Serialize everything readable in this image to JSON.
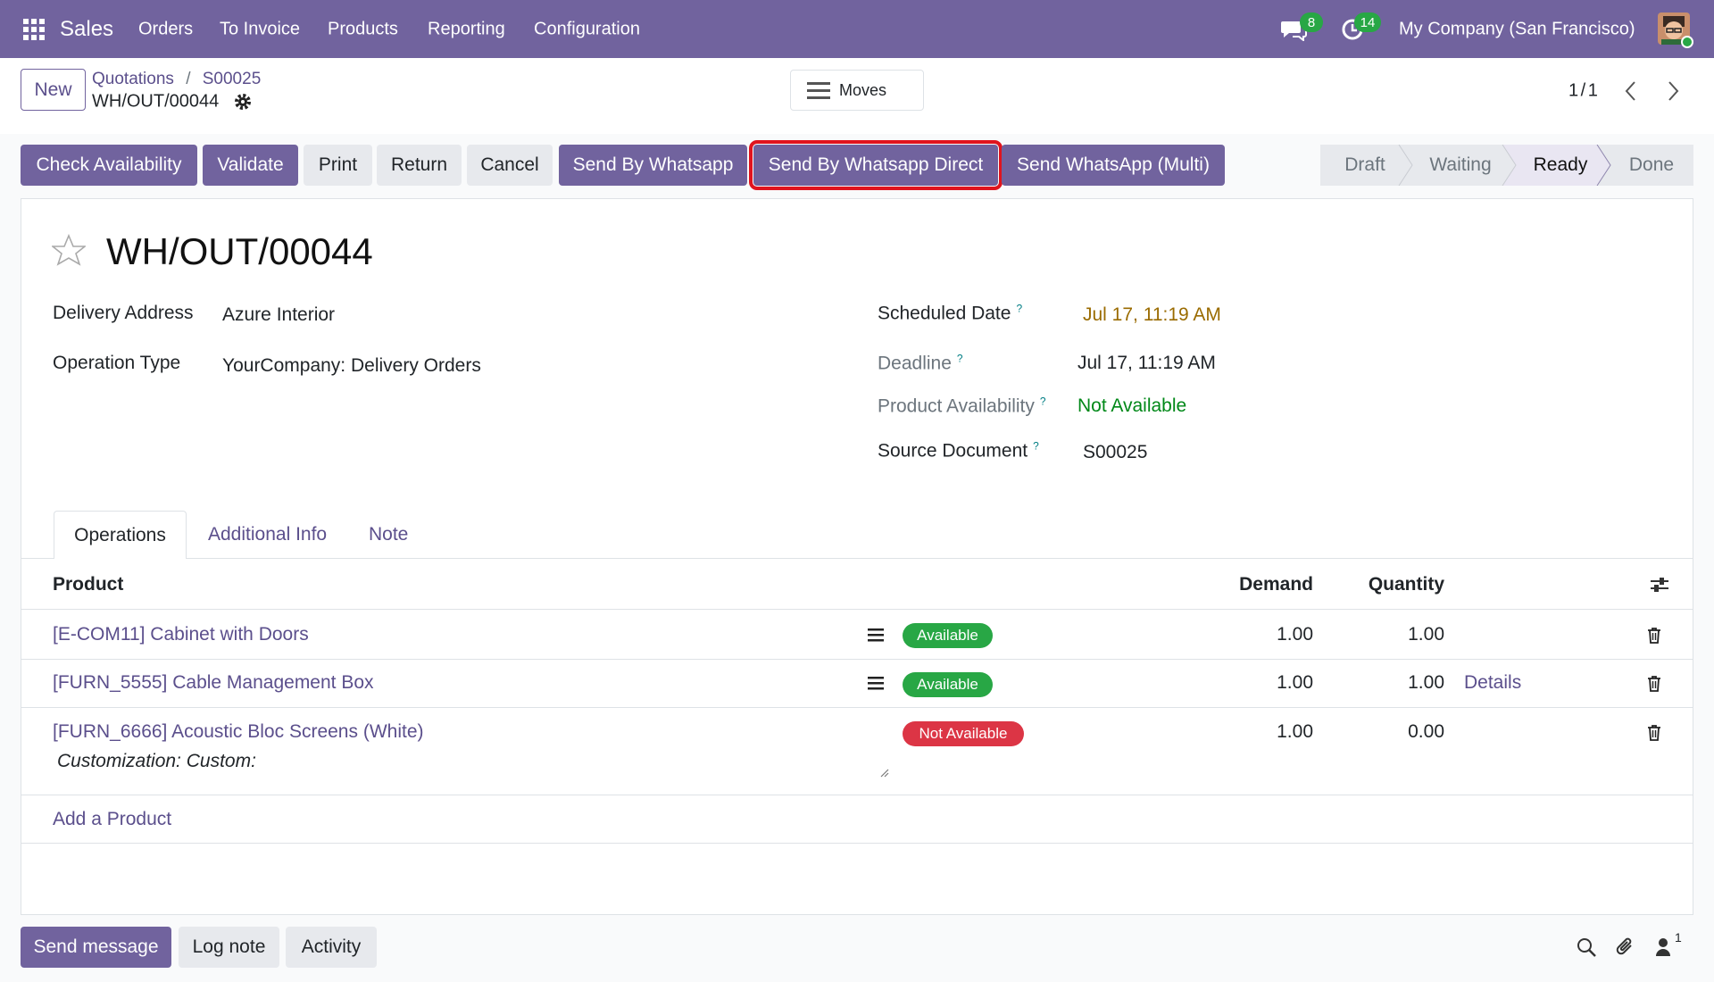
{
  "navbar": {
    "app": "Sales",
    "menu": [
      "Orders",
      "To Invoice",
      "Products",
      "Reporting",
      "Configuration"
    ],
    "messages_badge": 8,
    "activities_badge": 14,
    "company": "My Company (San Francisco)"
  },
  "control_panel": {
    "new_button": "New",
    "breadcrumb": [
      "Quotations",
      "S00025"
    ],
    "breadcrumb_separator": "/",
    "current": "WH/OUT/00044",
    "moves_button": "Moves",
    "pager": "1 / 1"
  },
  "actions": [
    "Check Availability",
    "Validate",
    "Print",
    "Return",
    "Cancel",
    "Send By Whatsapp",
    "Send By Whatsapp Direct",
    "Send WhatsApp (Multi)"
  ],
  "statusbar": [
    "Draft",
    "Waiting",
    "Ready",
    "Done"
  ],
  "form": {
    "title": "WH/OUT/00044",
    "fields_left": [
      {
        "label": "Delivery Address",
        "value": "Azure Interior"
      },
      {
        "label": "Operation Type",
        "value": "YourCompany: Delivery Orders"
      }
    ],
    "fields_right": [
      {
        "label": "Scheduled Date",
        "help": "?",
        "value": "Jul 17, 11:19 AM"
      },
      {
        "label": "Deadline",
        "help": "?",
        "value": "Jul 17, 11:19 AM"
      },
      {
        "label": "Product Availability",
        "help": "?",
        "value": "Not Available"
      },
      {
        "label": "Source Document",
        "help": "?",
        "value": "S00025"
      }
    ]
  },
  "tabs": [
    "Operations",
    "Additional Info",
    "Note"
  ],
  "table": {
    "headers": [
      "Product",
      "Demand",
      "Quantity"
    ],
    "rows": [
      {
        "product": "[E-COM11] Cabinet with Doors",
        "status": "Available",
        "demand": "1.00",
        "quantity": "1.00"
      },
      {
        "product": "[FURN_5555] Cable Management Box",
        "status": "Available",
        "demand": "1.00",
        "quantity": "1.00",
        "details": "Details"
      },
      {
        "product": "[FURN_6666] Acoustic Bloc Screens (White)",
        "description": "Customization: Custom:",
        "status": "Not Available",
        "demand": "1.00",
        "quantity": "0.00"
      }
    ],
    "add_line": "Add a Product"
  },
  "chatter": {
    "buttons": [
      "Send message",
      "Log note",
      "Activity"
    ],
    "followers": 1
  }
}
